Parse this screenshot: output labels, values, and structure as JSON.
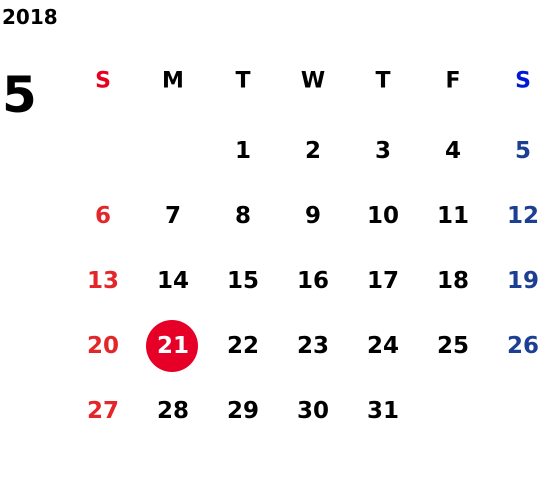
{
  "header": {
    "year": "2018",
    "month": "5"
  },
  "weekdays": [
    "S",
    "M",
    "T",
    "W",
    "T",
    "F",
    "S"
  ],
  "weeks": [
    [
      null,
      null,
      1,
      2,
      3,
      4,
      5
    ],
    [
      6,
      7,
      8,
      9,
      10,
      11,
      12
    ],
    [
      13,
      14,
      15,
      16,
      17,
      18,
      19
    ],
    [
      20,
      21,
      22,
      23,
      24,
      25,
      26
    ],
    [
      27,
      28,
      29,
      30,
      31,
      null,
      null
    ]
  ],
  "selected_day": 21,
  "colors": {
    "sunday_header": "#e8001c",
    "saturday_header": "#0018d8",
    "sunday": "#e3262a",
    "saturday": "#1c3f94",
    "weekday": "#000000",
    "selected": "#e60028",
    "selected_text": "#ffffff"
  }
}
